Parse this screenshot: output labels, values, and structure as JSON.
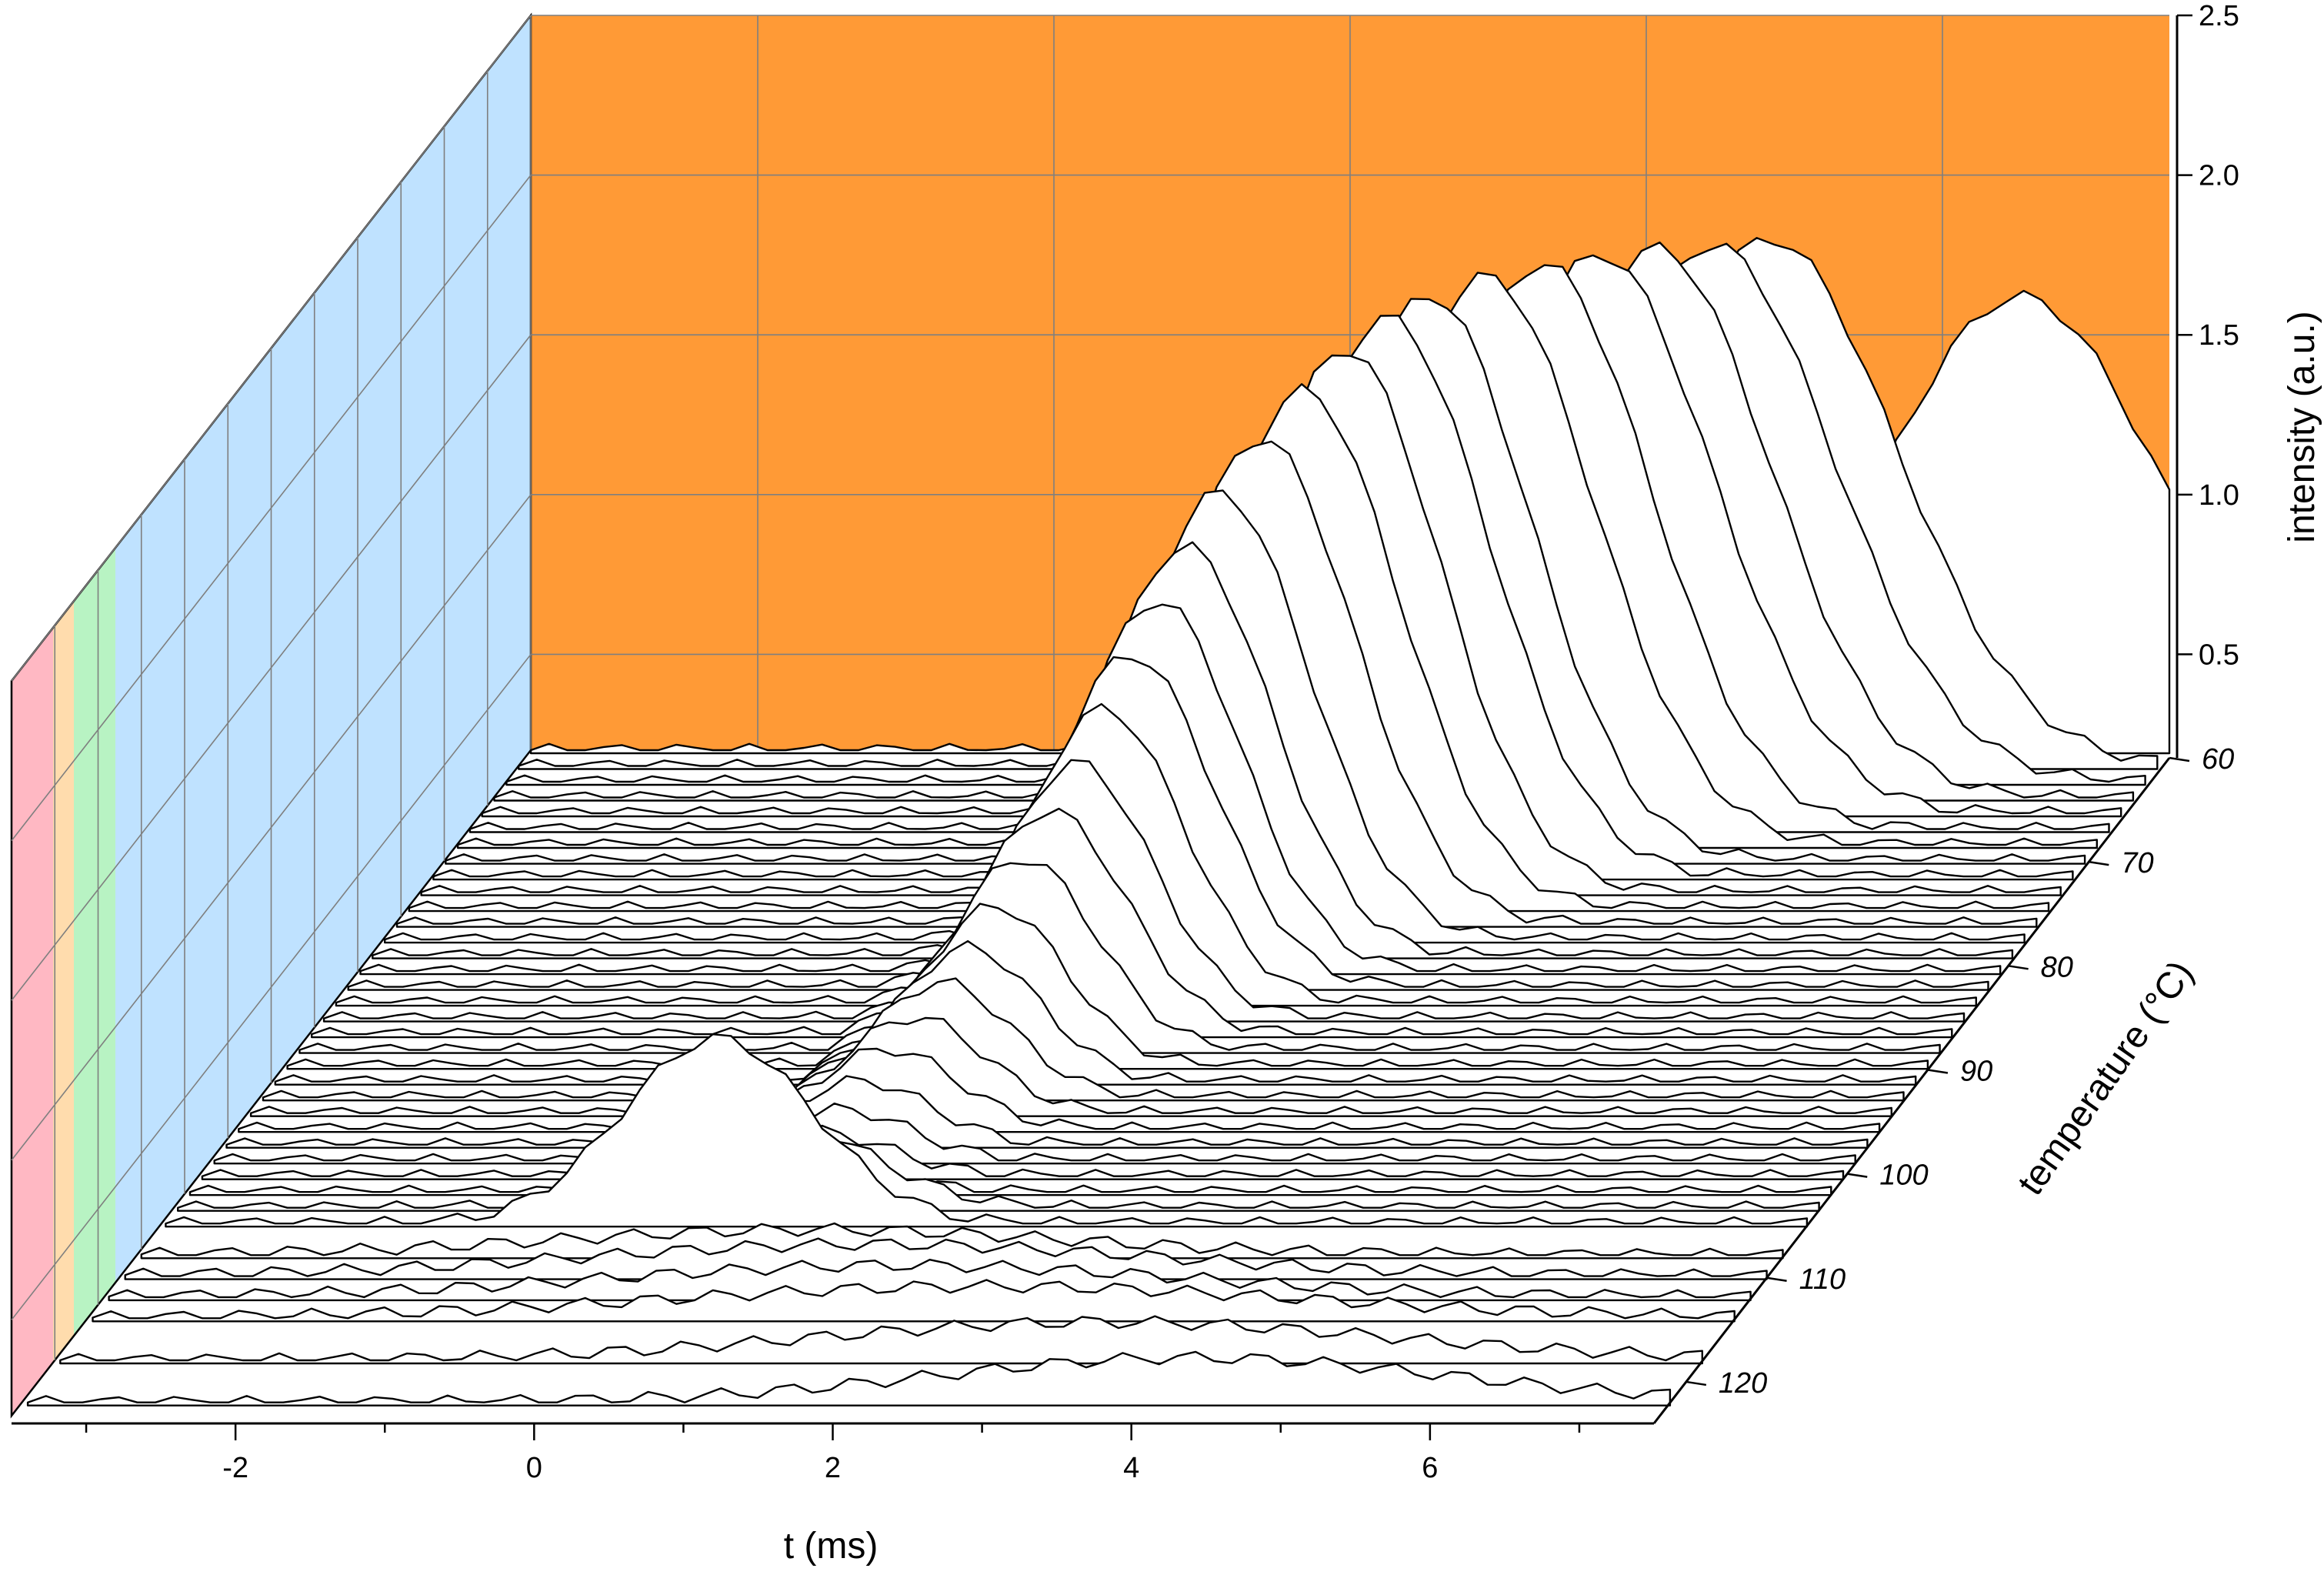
{
  "chart_data": {
    "type": "waterfall",
    "xlabel": "t (ms)",
    "ylabel": "temperature (°C)",
    "zlabel": "intensity (a.u.)",
    "x_ticks": [
      "-2",
      "0",
      "2",
      "4",
      "6"
    ],
    "y_ticks": [
      "60",
      "70",
      "80",
      "90",
      "100",
      "110",
      "120"
    ],
    "z_ticks": [
      "0.5",
      "1.0",
      "1.5",
      "2.0",
      "2.5"
    ],
    "xlim": [
      -3.5,
      7.5
    ],
    "ylim": [
      60,
      124
    ],
    "zlim": [
      0.2,
      2.5
    ],
    "colors": {
      "back_wall": "#ff9a36",
      "side_wall_bands": [
        "#ffb8c3",
        "#ffdcad",
        "#b8f3c3",
        "#bfe2ff"
      ],
      "trace_fill": "#ffffff",
      "trace_line": "#000000",
      "grid": "#7f7f7f"
    },
    "series": [
      {
        "temperature": 60,
        "peak_t": 6.5,
        "peak_intensity": 1.62,
        "width": 2.2
      },
      {
        "temperature": 61.5,
        "peak_t": 4.9,
        "peak_intensity": 1.85,
        "width": 2.0
      },
      {
        "temperature": 63,
        "peak_t": 4.6,
        "peak_intensity": 1.88,
        "width": 1.9
      },
      {
        "temperature": 64.5,
        "peak_t": 4.3,
        "peak_intensity": 1.92,
        "width": 1.8
      },
      {
        "temperature": 66,
        "peak_t": 4.0,
        "peak_intensity": 1.95,
        "width": 1.8
      },
      {
        "temperature": 67.5,
        "peak_t": 3.7,
        "peak_intensity": 1.97,
        "width": 1.7
      },
      {
        "temperature": 69,
        "peak_t": 3.4,
        "peak_intensity": 1.98,
        "width": 1.7
      },
      {
        "temperature": 70.5,
        "peak_t": 3.1,
        "peak_intensity": 1.97,
        "width": 1.6
      },
      {
        "temperature": 72,
        "peak_t": 2.9,
        "peak_intensity": 1.95,
        "width": 1.6
      },
      {
        "temperature": 73.5,
        "peak_t": 2.7,
        "peak_intensity": 1.9,
        "width": 1.5
      },
      {
        "temperature": 75,
        "peak_t": 2.5,
        "peak_intensity": 1.82,
        "width": 1.5
      },
      {
        "temperature": 76.5,
        "peak_t": 2.3,
        "peak_intensity": 1.72,
        "width": 1.45
      },
      {
        "temperature": 78,
        "peak_t": 2.1,
        "peak_intensity": 1.6,
        "width": 1.4
      },
      {
        "temperature": 79.5,
        "peak_t": 1.95,
        "peak_intensity": 1.48,
        "width": 1.35
      },
      {
        "temperature": 81,
        "peak_t": 1.85,
        "peak_intensity": 1.36,
        "width": 1.3
      },
      {
        "temperature": 82.5,
        "peak_t": 1.75,
        "peak_intensity": 1.24,
        "width": 1.3
      },
      {
        "temperature": 84,
        "peak_t": 1.65,
        "peak_intensity": 1.12,
        "width": 1.25
      },
      {
        "temperature": 85.5,
        "peak_t": 1.55,
        "peak_intensity": 1.0,
        "width": 1.2
      },
      {
        "temperature": 87,
        "peak_t": 1.45,
        "peak_intensity": 0.9,
        "width": 1.2
      },
      {
        "temperature": 88.5,
        "peak_t": 1.35,
        "peak_intensity": 0.8,
        "width": 1.15
      },
      {
        "temperature": 90,
        "peak_t": 1.25,
        "peak_intensity": 0.7,
        "width": 1.1
      },
      {
        "temperature": 91.5,
        "peak_t": 1.15,
        "peak_intensity": 0.62,
        "width": 1.1
      },
      {
        "temperature": 93,
        "peak_t": 1.05,
        "peak_intensity": 0.56,
        "width": 1.1
      },
      {
        "temperature": 94.5,
        "peak_t": 0.95,
        "peak_intensity": 0.5,
        "width": 1.1
      },
      {
        "temperature": 96,
        "peak_t": 0.85,
        "peak_intensity": 0.45,
        "width": 1.1
      },
      {
        "temperature": 97.5,
        "peak_t": 0.75,
        "peak_intensity": 0.4,
        "width": 1.1
      },
      {
        "temperature": 99,
        "peak_t": 0.7,
        "peak_intensity": 0.36,
        "width": 1.1
      },
      {
        "temperature": 100.5,
        "peak_t": 0.6,
        "peak_intensity": 0.34,
        "width": 1.2
      },
      {
        "temperature": 102,
        "peak_t": 0.5,
        "peak_intensity": 0.32,
        "width": 1.3
      },
      {
        "temperature": 103.5,
        "peak_t": 0.4,
        "peak_intensity": 0.5,
        "width": 1.6
      },
      {
        "temperature": 105,
        "peak_t": 0.2,
        "peak_intensity": 0.78,
        "width": 1.5
      },
      {
        "temperature": 108,
        "peak_t": 1.0,
        "peak_intensity": 0.28,
        "width": 4.0
      },
      {
        "temperature": 110,
        "peak_t": 1.5,
        "peak_intensity": 0.3,
        "width": 4.5
      },
      {
        "temperature": 112,
        "peak_t": 1.8,
        "peak_intensity": 0.3,
        "width": 4.5
      },
      {
        "temperature": 114,
        "peak_t": 2.5,
        "peak_intensity": 0.3,
        "width": 5.0
      },
      {
        "temperature": 118,
        "peak_t": 3.5,
        "peak_intensity": 0.32,
        "width": 4.5
      },
      {
        "temperature": 122,
        "peak_t": 4.3,
        "peak_intensity": 0.34,
        "width": 4.0
      }
    ]
  }
}
